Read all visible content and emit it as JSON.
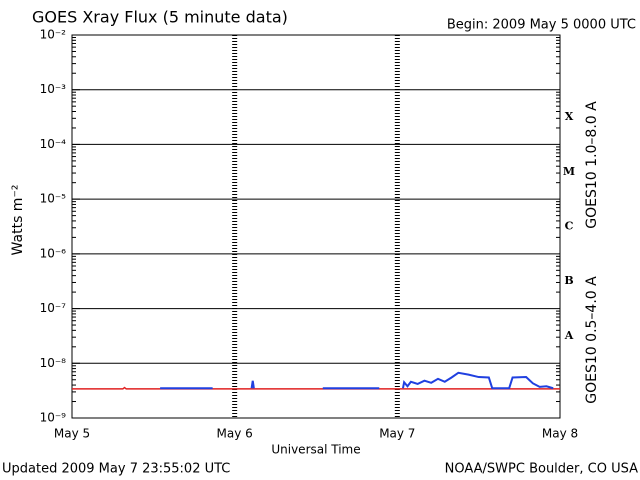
{
  "chart_data": {
    "type": "line",
    "title": "GOES Xray Flux (5 minute data)",
    "subtitle": "Begin:  2009 May 5 0000 UTC",
    "y_label": "Watts m⁻²",
    "x_label": "Universal Time",
    "footer_left": "Updated 2009 May  7 23:55:02 UTC",
    "footer_right": "NOAA/SWPC Boulder, CO USA",
    "log_scale": true,
    "grid": true,
    "ylim": [
      1e-09,
      0.01
    ],
    "yticks": [
      {
        "value": 0.01,
        "label": "10⁻²"
      },
      {
        "value": 0.001,
        "label": "10⁻³"
      },
      {
        "value": 0.0001,
        "label": "10⁻⁴"
      },
      {
        "value": 1e-05,
        "label": "10⁻⁵"
      },
      {
        "value": 1e-06,
        "label": "10⁻⁶"
      },
      {
        "value": 1e-07,
        "label": "10⁻⁷"
      },
      {
        "value": 1e-08,
        "label": "10⁻⁸"
      },
      {
        "value": 1e-09,
        "label": "10⁻⁹"
      }
    ],
    "xlim": [
      "2009-05-05T00:00",
      "2009-05-08T00:00"
    ],
    "xticks": [
      {
        "value": "2009-05-05T00:00",
        "label": "May 5"
      },
      {
        "value": "2009-05-06T00:00",
        "label": "May 6"
      },
      {
        "value": "2009-05-07T00:00",
        "label": "May 7"
      },
      {
        "value": "2009-05-08T00:00",
        "label": "May 8"
      }
    ],
    "class_labels": [
      "X",
      "M",
      "C",
      "B",
      "A"
    ],
    "series": [
      {
        "name": "GOES10 1.0–8.0 A",
        "color": "#e02020",
        "x": [
          "2009-05-05T00:00",
          "2009-05-05T07:30",
          "2009-05-05T07:45",
          "2009-05-05T08:00",
          "2009-05-08T00:00"
        ],
        "values": [
          3.4e-09,
          3.4e-09,
          3.6e-09,
          3.4e-09,
          3.4e-09
        ]
      },
      {
        "name": "GOES10 0.5–4.0 A",
        "color": "#2040e0",
        "x": [
          "2009-05-05T13:00",
          "2009-05-05T20:45",
          null,
          "2009-05-06T02:30",
          "2009-05-06T02:40",
          "2009-05-06T02:50",
          null,
          "2009-05-06T13:00",
          "2009-05-06T21:20",
          null,
          "2009-05-07T00:50",
          "2009-05-07T01:00",
          "2009-05-07T01:30",
          "2009-05-07T02:00",
          "2009-05-07T03:00",
          "2009-05-07T04:00",
          "2009-05-07T05:00",
          "2009-05-07T06:00",
          "2009-05-07T07:00",
          "2009-05-07T08:00",
          "2009-05-07T09:00",
          "2009-05-07T10:30",
          "2009-05-07T12:00",
          "2009-05-07T13:30",
          "2009-05-07T14:00",
          "2009-05-07T16:30",
          "2009-05-07T17:00",
          "2009-05-07T19:00",
          "2009-05-07T20:00",
          "2009-05-07T21:00",
          "2009-05-07T22:00",
          "2009-05-07T23:00"
        ],
        "values": [
          3.5e-09,
          3.5e-09,
          null,
          3.5e-09,
          4.8e-09,
          3.5e-09,
          null,
          3.5e-09,
          3.5e-09,
          null,
          3.5e-09,
          4.5e-09,
          3.8e-09,
          4.6e-09,
          4.2e-09,
          4.8e-09,
          4.4e-09,
          5.2e-09,
          4.6e-09,
          5.5e-09,
          6.7e-09,
          6.2e-09,
          5.6e-09,
          5.5e-09,
          3.5e-09,
          3.5e-09,
          5.5e-09,
          5.6e-09,
          4.3e-09,
          3.7e-09,
          3.8e-09,
          3.5e-09
        ]
      }
    ]
  }
}
